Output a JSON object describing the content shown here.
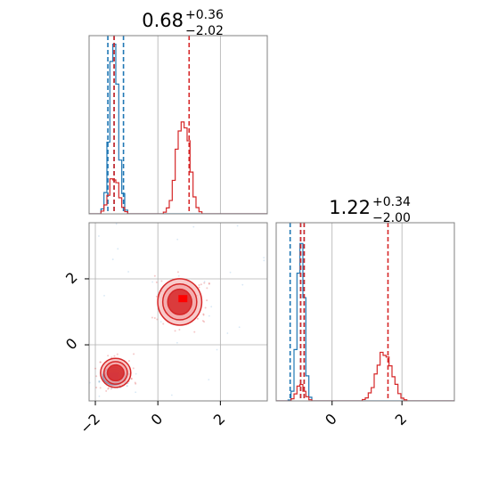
{
  "chart_data": {
    "type": "corner",
    "grid": true,
    "colors": {
      "series_a": "#1f77b4",
      "series_b": "#d62728",
      "series_a_fill": "#7fb3dd",
      "series_b_fill": "#f2a0a1",
      "marker_a": "#0000ff",
      "marker_b": "#ff0000"
    },
    "panels": [
      {
        "position": "top-left",
        "type": "histogram",
        "title": {
          "value": "0.68",
          "sup": "+0.36",
          "sub": "−2.02"
        },
        "xlim": [
          -2.2,
          3.5
        ],
        "ylim": [
          0,
          1.05
        ],
        "xticks": [],
        "series": [
          {
            "color": "#1f77b4",
            "quantiles": [
              -1.6,
              -1.4,
              -1.1
            ],
            "peak": -1.4,
            "width": 0.14,
            "height": 0.95
          },
          {
            "color": "#d62728",
            "quantiles": [
              -1.4,
              1.0
            ],
            "components": [
              {
                "peak": -1.4,
                "width": 0.16,
                "height": 0.22
              },
              {
                "peak": 0.8,
                "width": 0.2,
                "height": 0.58
              }
            ]
          }
        ]
      },
      {
        "position": "bottom-right",
        "type": "histogram",
        "title": {
          "value": "1.22",
          "sup": "+0.34",
          "sub": "−2.00"
        },
        "xlim": [
          -1.6,
          3.5
        ],
        "ylim": [
          0,
          1.05
        ],
        "xticks": [
          0,
          2
        ],
        "xtick_labels": [
          "0",
          "2"
        ],
        "series": [
          {
            "color": "#1f77b4",
            "quantiles": [
              -1.2,
              -0.9,
              -0.8
            ],
            "peak": -0.9,
            "width": 0.1,
            "height": 0.95
          },
          {
            "color": "#d62728",
            "quantiles": [
              -0.9,
              -0.8,
              1.6
            ],
            "components": [
              {
                "peak": -0.9,
                "width": 0.12,
                "height": 0.09
              },
              {
                "peak": 1.5,
                "width": 0.22,
                "height": 0.29
              }
            ]
          }
        ]
      },
      {
        "position": "bottom-left",
        "type": "scatter-contour",
        "xlim": [
          -2.2,
          3.5
        ],
        "ylim": [
          -1.7,
          3.7
        ],
        "xticks": [
          -2,
          0,
          2
        ],
        "xtick_labels": [
          "−2",
          "0",
          "2"
        ],
        "yticks": [
          0,
          2
        ],
        "ytick_labels": [
          "0",
          "2"
        ],
        "series": [
          {
            "color": "#1f77b4",
            "center": [
              -1.4,
              -0.95
            ],
            "spread": [
              0.16,
              0.12
            ],
            "marker": [
              -1.4,
              -0.95
            ]
          },
          {
            "color": "#d62728",
            "center": [
              -1.35,
              -0.85
            ],
            "spread": [
              0.22,
              0.2
            ]
          },
          {
            "color": "#d62728",
            "center": [
              0.7,
              1.3
            ],
            "spread": [
              0.32,
              0.32
            ],
            "marker": [
              0.8,
              1.4
            ]
          }
        ]
      }
    ]
  }
}
